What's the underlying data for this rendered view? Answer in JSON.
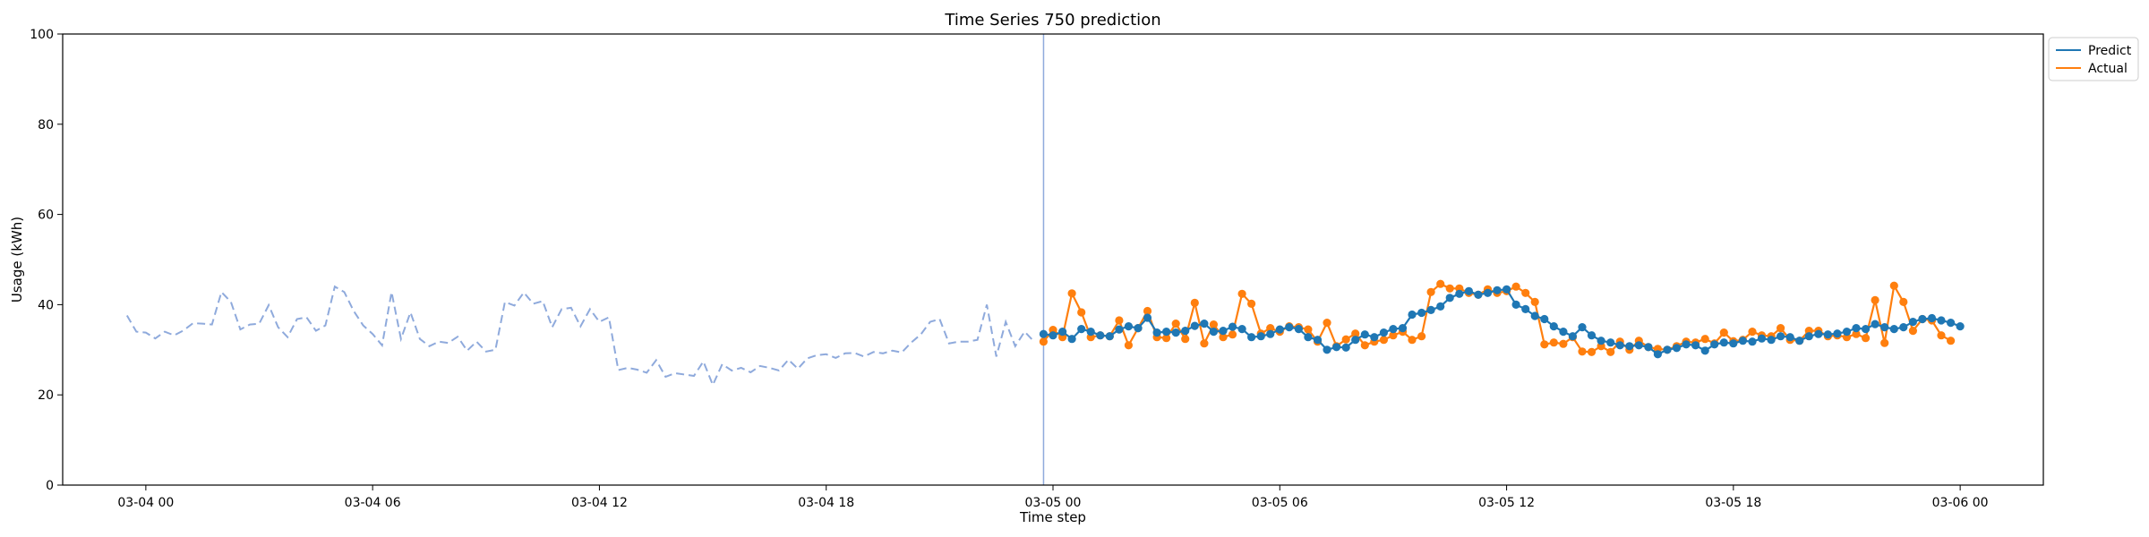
{
  "chart_data": {
    "type": "line",
    "title": "Time Series 750 prediction",
    "xlabel": "Time step",
    "ylabel": "Usage (kWh)",
    "ylim": [
      0,
      100
    ],
    "xlim": [
      "03-03 21:48",
      "03-06 02:12"
    ],
    "xticks": [
      {
        "label": "03-04 00",
        "value": "03-04 00:00"
      },
      {
        "label": "03-04 06",
        "value": "03-04 06:00"
      },
      {
        "label": "03-04 12",
        "value": "03-04 12:00"
      },
      {
        "label": "03-04 18",
        "value": "03-04 18:00"
      },
      {
        "label": "03-05 00",
        "value": "03-05 00:00"
      },
      {
        "label": "03-05 06",
        "value": "03-05 06:00"
      },
      {
        "label": "03-05 12",
        "value": "03-05 12:00"
      },
      {
        "label": "03-05 18",
        "value": "03-05 18:00"
      },
      {
        "label": "03-06 00",
        "value": "03-06 00:00"
      }
    ],
    "yticks": [
      0,
      20,
      40,
      60,
      80,
      100
    ],
    "grid": false,
    "legend_position": "outside-top-right",
    "forecast_start": "03-04 23:45",
    "history": {
      "x_start": "03-03 23:30",
      "x_step_minutes": 15,
      "color": "#8faadc",
      "style": "dashed",
      "values": [
        37.6,
        34.0,
        33.8,
        32.5,
        34.0,
        33.2,
        34.3,
        35.9,
        35.8,
        35.6,
        42.8,
        40.6,
        34.5,
        35.6,
        35.8,
        39.9,
        35.0,
        32.8,
        36.8,
        37.2,
        34.2,
        35.4,
        44.0,
        42.8,
        38.6,
        35.4,
        33.5,
        31.0,
        42.8,
        32.4,
        38.3,
        32.4,
        30.8,
        31.8,
        31.5,
        32.9,
        29.8,
        31.8,
        29.6,
        30.0,
        40.6,
        39.8,
        42.7,
        40.2,
        40.8,
        35.0,
        39.0,
        39.3,
        35.2,
        39.0,
        36.2,
        37.2,
        25.5,
        26.0,
        25.6,
        24.9,
        27.7,
        24.0,
        24.8,
        24.5,
        24.2,
        27.4,
        22.2,
        26.8,
        25.4,
        26.0,
        25.0,
        26.4,
        26.0,
        25.4,
        27.8,
        25.8,
        28.1,
        28.8,
        29.0,
        28.2,
        29.2,
        29.3,
        28.5,
        29.5,
        29.2,
        29.8,
        29.4,
        31.6,
        33.4,
        36.2,
        36.8,
        31.4,
        31.8,
        31.8,
        32.2,
        40.0,
        28.5,
        36.2,
        30.8,
        34.0,
        31.8
      ]
    },
    "series": [
      {
        "name": "Predict",
        "color": "#1f77b4",
        "x_start": "03-04 23:45",
        "x_step_minutes": 15,
        "values": [
          33.5,
          33.2,
          34.0,
          32.4,
          34.6,
          34.0,
          33.2,
          33.0,
          34.5,
          35.2,
          34.8,
          37.1,
          33.8,
          34.0,
          33.8,
          34.2,
          35.3,
          35.8,
          34.0,
          34.2,
          35.1,
          34.6,
          32.8,
          33.0,
          33.5,
          34.5,
          35.0,
          34.6,
          32.8,
          32.2,
          30.0,
          30.6,
          30.5,
          32.2,
          33.4,
          32.8,
          33.8,
          34.6,
          34.8,
          37.8,
          38.2,
          38.8,
          39.6,
          41.5,
          42.4,
          43.0,
          42.2,
          42.6,
          43.2,
          43.4,
          40.0,
          39.0,
          37.5,
          36.8,
          35.2,
          34.0,
          33.0,
          35.0,
          33.2,
          32.0,
          31.6,
          31.0,
          30.8,
          31.0,
          30.6,
          29.0,
          30.0,
          30.4,
          31.2,
          31.0,
          29.8,
          31.2,
          31.6,
          31.4,
          32.0,
          31.8,
          32.5,
          32.2,
          33.0,
          32.8,
          32.0,
          33.0,
          33.5,
          33.4,
          33.6,
          34.0,
          34.8,
          34.6,
          35.7,
          35.0,
          34.6,
          35.0,
          36.2,
          36.8,
          37.0,
          36.5,
          36.0,
          35.2
        ]
      },
      {
        "name": "Actual",
        "color": "#ff7f0e",
        "x_start": "03-04 23:45",
        "x_step_minutes": 15,
        "values": [
          31.8,
          34.4,
          32.8,
          42.5,
          38.3,
          32.8,
          33.2,
          33.0,
          36.5,
          31.0,
          34.8,
          38.6,
          32.8,
          32.6,
          35.8,
          32.4,
          40.4,
          31.4,
          35.6,
          32.8,
          33.4,
          42.4,
          40.2,
          33.6,
          34.8,
          34.0,
          35.2,
          35.0,
          34.5,
          31.8,
          36.0,
          30.8,
          32.3,
          33.6,
          31.0,
          31.8,
          32.2,
          33.2,
          34.0,
          32.2,
          33.0,
          42.8,
          44.6,
          43.6,
          43.6,
          42.6,
          42.2,
          43.4,
          42.6,
          43.0,
          44.0,
          42.6,
          40.6,
          31.2,
          31.6,
          31.3,
          32.8,
          29.6,
          29.5,
          30.8,
          29.5,
          31.8,
          30.0,
          32.0,
          30.6,
          30.2,
          30.0,
          30.8,
          31.8,
          31.6,
          32.4,
          31.4,
          33.8,
          31.9,
          32.2,
          34.0,
          33.2,
          33.0,
          34.8,
          32.2,
          32.0,
          34.2,
          34.2,
          33.0,
          33.2,
          32.8,
          33.5,
          32.6,
          41.0,
          31.5,
          44.2,
          40.6,
          34.2,
          36.8,
          36.5,
          33.2,
          32.0
        ]
      }
    ]
  }
}
